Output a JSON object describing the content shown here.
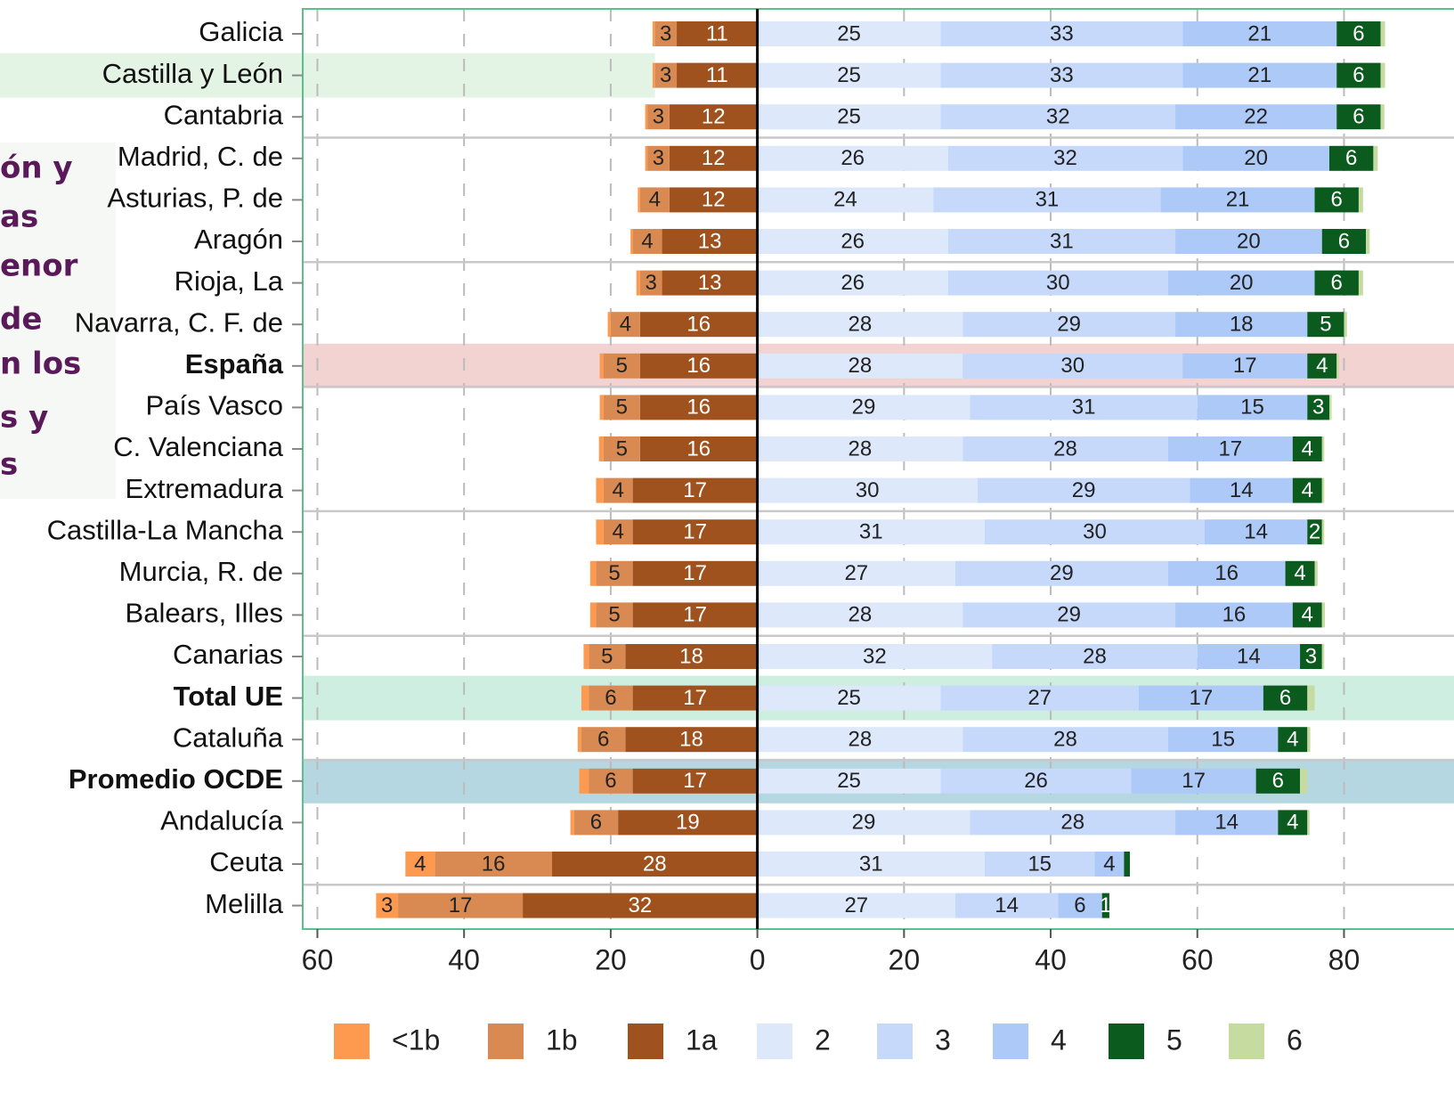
{
  "chart_data": {
    "type": "bar",
    "orientation": "horizontal",
    "stacked": true,
    "diverging": true,
    "categories": [
      "Galicia",
      "Castilla y León",
      "Cantabria",
      "Madrid, C. de",
      "Asturias, P. de",
      "Aragón",
      "Rioja, La",
      "Navarra, C. F. de",
      "España",
      "País Vasco",
      "C. Valenciana",
      "Extremadura",
      "Castilla-La Mancha",
      "Murcia, R. de",
      "Balears, Illes",
      "Canarias",
      "Total UE",
      "Cataluña",
      "Promedio OCDE",
      "Andalucía",
      "Ceuta",
      "Melilla"
    ],
    "series": [
      {
        "name": "<1b",
        "color": "#fd9a50",
        "side": "left",
        "text_color": "#222",
        "values": [
          0.3,
          0.3,
          0.3,
          0.3,
          0.3,
          0.3,
          0.5,
          0.4,
          0.5,
          0.5,
          0.6,
          1,
          1,
          0.8,
          0.8,
          0.7,
          1,
          0.5,
          1.3,
          0.5,
          4,
          3
        ],
        "value_labels": [
          null,
          null,
          null,
          null,
          null,
          null,
          null,
          null,
          null,
          null,
          null,
          null,
          null,
          null,
          null,
          null,
          null,
          null,
          null,
          null,
          "4",
          "3"
        ]
      },
      {
        "name": "1b",
        "color": "#d98a52",
        "side": "left",
        "text_color": "#222",
        "values": [
          3,
          3,
          3,
          3,
          4,
          4,
          3,
          4,
          5,
          5,
          5,
          4,
          4,
          5,
          5,
          5,
          6,
          6,
          6,
          6,
          16,
          17
        ]
      },
      {
        "name": "1a",
        "color": "#a0521e",
        "side": "left",
        "text_color": "#fff",
        "values": [
          11,
          11,
          12,
          12,
          12,
          13,
          13,
          16,
          16,
          16,
          16,
          17,
          17,
          17,
          17,
          18,
          17,
          18,
          17,
          19,
          28,
          32
        ]
      },
      {
        "name": "2",
        "color": "#dde8fb",
        "side": "right",
        "text_color": "#222",
        "values": [
          25,
          25,
          25,
          26,
          24,
          26,
          26,
          28,
          28,
          29,
          28,
          30,
          31,
          27,
          28,
          32,
          25,
          28,
          25,
          29,
          31,
          27
        ]
      },
      {
        "name": "3",
        "color": "#c6d9fb",
        "side": "right",
        "text_color": "#222",
        "values": [
          33,
          33,
          32,
          32,
          31,
          31,
          30,
          29,
          30,
          31,
          28,
          29,
          30,
          29,
          29,
          28,
          27,
          28,
          26,
          28,
          15,
          14
        ]
      },
      {
        "name": "4",
        "color": "#adc9f8",
        "side": "right",
        "text_color": "#222",
        "values": [
          21,
          21,
          22,
          20,
          21,
          20,
          20,
          18,
          17,
          15,
          17,
          14,
          14,
          16,
          16,
          14,
          17,
          15,
          17,
          14,
          4,
          6
        ]
      },
      {
        "name": "5",
        "color": "#0b5a1e",
        "side": "right",
        "text_color": "#fff",
        "values": [
          6,
          6,
          6,
          6,
          6,
          6,
          6,
          5,
          4,
          3,
          4,
          4,
          2,
          4,
          4,
          3,
          6,
          4,
          6,
          4,
          0.8,
          1
        ],
        "value_labels": [
          "6",
          "6",
          "6",
          "6",
          "6",
          "6",
          "6",
          "5",
          "4",
          "3",
          "4",
          "4",
          "2",
          "4",
          "4",
          "3",
          "6",
          "4",
          "6",
          "4",
          null,
          "1"
        ]
      },
      {
        "name": "6",
        "color": "#c5dba0",
        "side": "right",
        "labels": false,
        "values": [
          0.6,
          0.6,
          0.5,
          0.6,
          0.6,
          0.5,
          0.6,
          0.4,
          0.3,
          0.3,
          0.3,
          0.3,
          0.3,
          0.4,
          0.4,
          0.3,
          1,
          0.4,
          1,
          0.3,
          0,
          0
        ]
      }
    ],
    "xlim": [
      -62,
      95
    ],
    "xticks": [
      {
        "value": -60,
        "label": "60"
      },
      {
        "value": -40,
        "label": "40"
      },
      {
        "value": -20,
        "label": "20"
      },
      0,
      20,
      40,
      60,
      80
    ],
    "grid": true,
    "legend": "bottom",
    "highlights": [
      {
        "category": "Castilla y León",
        "color": "#e4f4e4",
        "span": "left",
        "label_color": "#888888"
      },
      {
        "category": "España",
        "color": "#f3d2d2",
        "span": "full",
        "bold": true
      },
      {
        "category": "Total UE",
        "color": "#cdeee1",
        "span": "full",
        "bold": true
      },
      {
        "category": "Promedio OCDE",
        "color": "#b5d7e1",
        "span": "full",
        "bold": true
      }
    ],
    "annotations": [
      "ón y",
      "as",
      "enor",
      "de",
      "n los",
      "s y",
      "s"
    ]
  }
}
